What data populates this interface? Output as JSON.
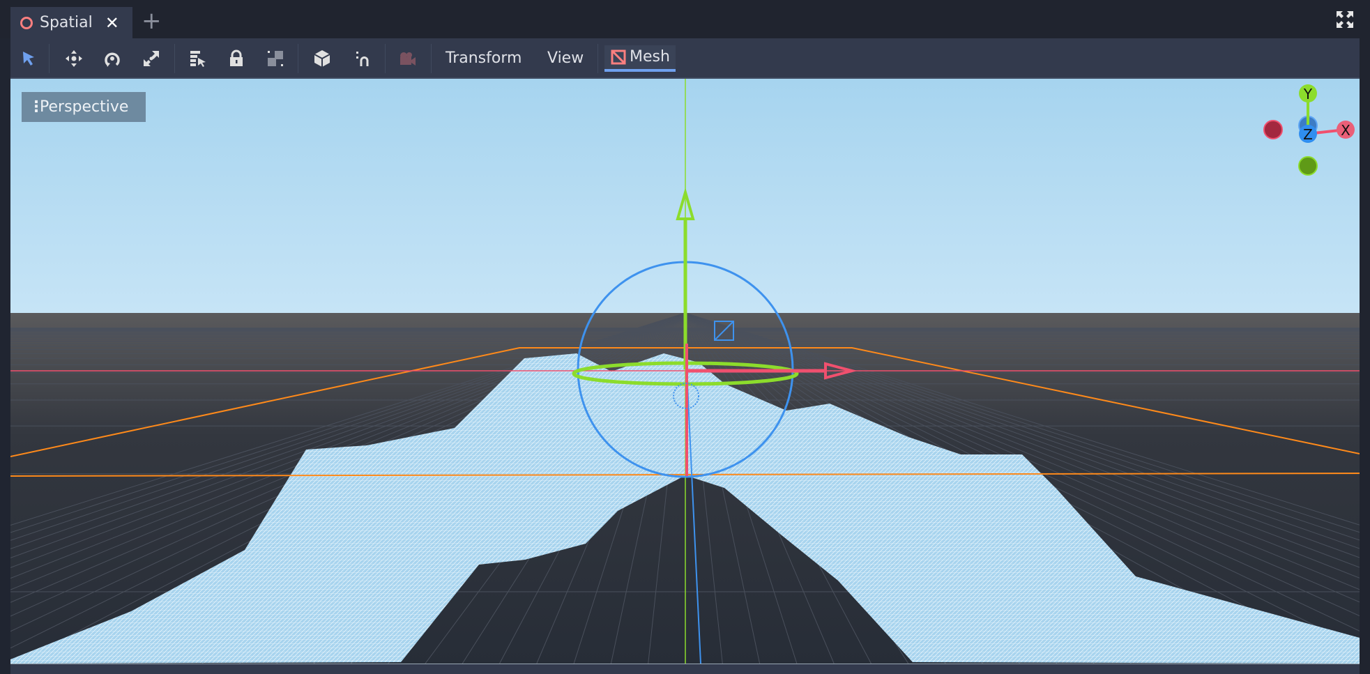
{
  "tabs": [
    {
      "label": "Spatial",
      "icon": "spatial-node-icon",
      "active": true
    }
  ],
  "toolbar": {
    "tools": [
      "select-icon",
      "move-icon",
      "rotate-icon",
      "scale-icon",
      "list-select-icon",
      "lock-icon",
      "group-icon",
      "local-coords-icon",
      "snap-icon",
      "camera-preview-icon"
    ],
    "menus": {
      "transform": "Transform",
      "view": "View",
      "mesh": "Mesh"
    }
  },
  "viewport": {
    "view_menu_label": "Perspective",
    "axis_gizmo": {
      "y": "Y",
      "z": "Z",
      "x": "X"
    },
    "colors": {
      "sky": "#a9d6f0",
      "ground": "#272d37",
      "mesh": "#a8d4ee",
      "x_axis": "#f0506e",
      "y_axis": "#8cdc2c",
      "z_axis": "#3e92ee",
      "bounds": "#ff8a1a"
    }
  }
}
